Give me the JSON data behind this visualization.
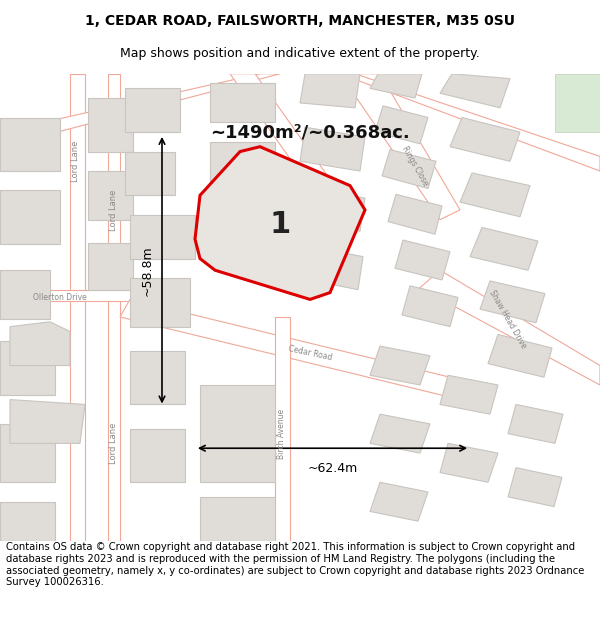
{
  "title_line1": "1, CEDAR ROAD, FAILSWORTH, MANCHESTER, M35 0SU",
  "title_line2": "Map shows position and indicative extent of the property.",
  "footer_text": "Contains OS data © Crown copyright and database right 2021. This information is subject to Crown copyright and database rights 2023 and is reproduced with the permission of HM Land Registry. The polygons (including the associated geometry, namely x, y co-ordinates) are subject to Crown copyright and database rights 2023 Ordnance Survey 100026316.",
  "area_label": "~1490m²/~0.368ac.",
  "parcel_label": "1",
  "dim_width": "~62.4m",
  "dim_height": "~58.8m",
  "map_bg": "#f7f5f3",
  "parcel_fill": "#e8e4e0",
  "parcel_edge": "#dd0000",
  "road_outline": "#f0a898",
  "road_fill": "#ffffff",
  "building_fill": "#e0dcd8",
  "building_edge": "#c8c4c0",
  "text_color": "#888888",
  "title_fontsize": 10,
  "subtitle_fontsize": 9,
  "footer_fontsize": 7.2,
  "area_fontsize": 13,
  "dim_fontsize": 9
}
